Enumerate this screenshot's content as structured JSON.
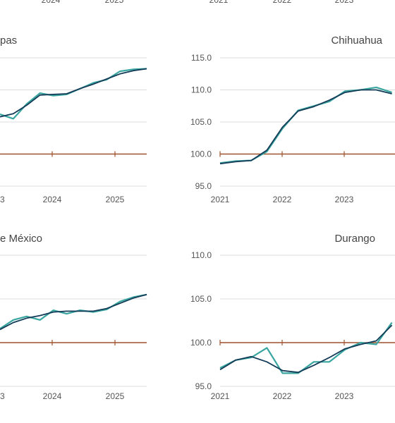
{
  "chart_data": [
    {
      "type": "line",
      "title": "pas",
      "x_ticks": [
        "3",
        "2024",
        "2025"
      ],
      "x": [
        2022.75,
        2023.0,
        2023.25,
        2023.5,
        2023.75,
        2024.0,
        2024.25,
        2024.5,
        2024.75,
        2025.0,
        2025.25,
        2025.5
      ],
      "xlim": [
        2022.75,
        2025.5
      ],
      "ylim": [
        95.0,
        115.0
      ],
      "y_gridlines": [
        95.0,
        100.0,
        105.0,
        110.0,
        115.0
      ],
      "reference_value": 100.0,
      "series": [
        {
          "values": [
            106.2,
            105.5,
            107.8,
            109.5,
            109.1,
            109.3,
            110.2,
            111.1,
            111.6,
            112.9,
            113.2,
            113.3
          ]
        },
        {
          "values": [
            105.8,
            106.3,
            107.6,
            109.2,
            109.3,
            109.4,
            110.2,
            110.9,
            111.7,
            112.5,
            113.0,
            113.3
          ]
        }
      ]
    },
    {
      "type": "line",
      "title": "Chihuahua",
      "y_ticks": [
        "115.0",
        "110.0",
        "105.0",
        "100.0",
        "95.0"
      ],
      "x_ticks": [
        "2021",
        "2022",
        "2023"
      ],
      "x": [
        2021.0,
        2021.25,
        2021.5,
        2021.75,
        2022.0,
        2022.25,
        2022.5,
        2022.75,
        2023.0,
        2023.25,
        2023.5,
        2023.75
      ],
      "xlim": [
        2021.0,
        2023.8
      ],
      "ylim": [
        95.0,
        115.0
      ],
      "y_gridlines": [
        95.0,
        100.0,
        105.0,
        110.0,
        115.0
      ],
      "reference_value": 100.0,
      "series": [
        {
          "values": [
            98.6,
            98.9,
            99.0,
            100.4,
            104.0,
            106.8,
            107.5,
            108.2,
            109.8,
            110.0,
            110.4,
            109.6
          ]
        },
        {
          "values": [
            98.5,
            98.8,
            99.0,
            100.6,
            104.2,
            106.7,
            107.4,
            108.4,
            109.6,
            110.0,
            110.0,
            109.4
          ]
        }
      ]
    },
    {
      "type": "line",
      "title": "e México",
      "x_ticks": [
        "3",
        "2024",
        "2025"
      ],
      "x": [
        2022.75,
        2023.0,
        2023.25,
        2023.5,
        2023.75,
        2024.0,
        2024.25,
        2024.5,
        2024.75,
        2025.0,
        2025.25,
        2025.5
      ],
      "xlim": [
        2022.75,
        2025.5
      ],
      "ylim": [
        95.0,
        110.0
      ],
      "y_gridlines": [
        95.0,
        100.0,
        105.0,
        110.0
      ],
      "reference_value": 100.0,
      "series": [
        {
          "values": [
            101.6,
            102.6,
            103.0,
            102.6,
            103.7,
            103.3,
            103.7,
            103.5,
            103.8,
            104.7,
            105.2,
            105.5
          ]
        },
        {
          "values": [
            101.5,
            102.3,
            102.8,
            103.1,
            103.5,
            103.6,
            103.6,
            103.6,
            103.9,
            104.5,
            105.1,
            105.5
          ]
        }
      ]
    },
    {
      "type": "line",
      "title": "Durango",
      "y_ticks": [
        "110.0",
        "105.0",
        "100.0",
        "95.0"
      ],
      "x_ticks": [
        "2021",
        "2022",
        "2023"
      ],
      "x": [
        2021.0,
        2021.25,
        2021.5,
        2021.75,
        2022.0,
        2022.25,
        2022.5,
        2022.75,
        2023.0,
        2023.25,
        2023.5,
        2023.75
      ],
      "xlim": [
        2021.0,
        2023.8
      ],
      "ylim": [
        95.0,
        110.0
      ],
      "y_gridlines": [
        95.0,
        100.0,
        105.0,
        110.0
      ],
      "reference_value": 100.0,
      "series": [
        {
          "values": [
            97.1,
            98.0,
            98.3,
            99.4,
            96.5,
            96.5,
            97.8,
            97.8,
            99.2,
            100.0,
            99.8,
            102.3
          ]
        },
        {
          "values": [
            96.9,
            98.0,
            98.4,
            97.8,
            96.8,
            96.6,
            97.4,
            98.3,
            99.3,
            99.8,
            100.2,
            102.0
          ]
        }
      ]
    }
  ],
  "colors": {
    "raw_series": "#3aa6a0",
    "trend_series": "#143b57",
    "reference_line": "#a0522d",
    "gridline": "#dcdcdc"
  }
}
